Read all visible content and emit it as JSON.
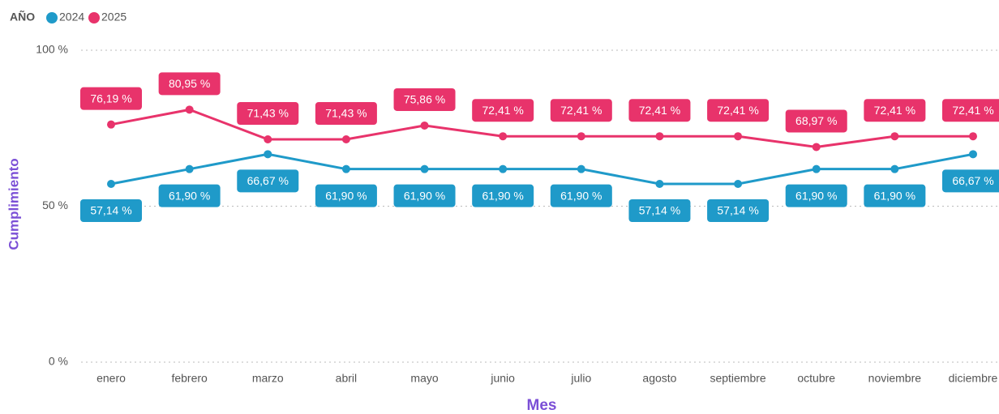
{
  "chart_data": {
    "type": "line",
    "legend_title": "AÑO",
    "x_label": "Mes",
    "y_label": "Cumplimiento",
    "categories": [
      "enero",
      "febrero",
      "marzo",
      "abril",
      "mayo",
      "junio",
      "julio",
      "agosto",
      "septiembre",
      "octubre",
      "noviembre",
      "diciembre"
    ],
    "series": [
      {
        "name": "2024",
        "color": "#1f9ac9",
        "values": [
          57.14,
          61.9,
          66.67,
          61.9,
          61.9,
          61.9,
          61.9,
          57.14,
          57.14,
          61.9,
          61.9,
          66.67
        ],
        "value_labels": [
          "57,14 %",
          "61,90 %",
          "66,67 %",
          "61,90 %",
          "61,90 %",
          "61,90 %",
          "61,90 %",
          "57,14 %",
          "57,14 %",
          "61,90 %",
          "61,90 %",
          "66,67 %"
        ]
      },
      {
        "name": "2025",
        "color": "#e8336b",
        "values": [
          76.19,
          80.95,
          71.43,
          71.43,
          75.86,
          72.41,
          72.41,
          72.41,
          72.41,
          68.97,
          72.41,
          72.41
        ],
        "value_labels": [
          "76,19 %",
          "80,95 %",
          "71,43 %",
          "71,43 %",
          "75,86 %",
          "72,41 %",
          "72,41 %",
          "72,41 %",
          "72,41 %",
          "68,97 %",
          "72,41 %",
          "72,41 %"
        ]
      }
    ],
    "ylim": [
      0,
      100
    ],
    "yticks": [
      {
        "value": 0,
        "label": "0 %"
      },
      {
        "value": 50,
        "label": "50 %"
      },
      {
        "value": 100,
        "label": "100 %"
      }
    ],
    "grid": true
  }
}
